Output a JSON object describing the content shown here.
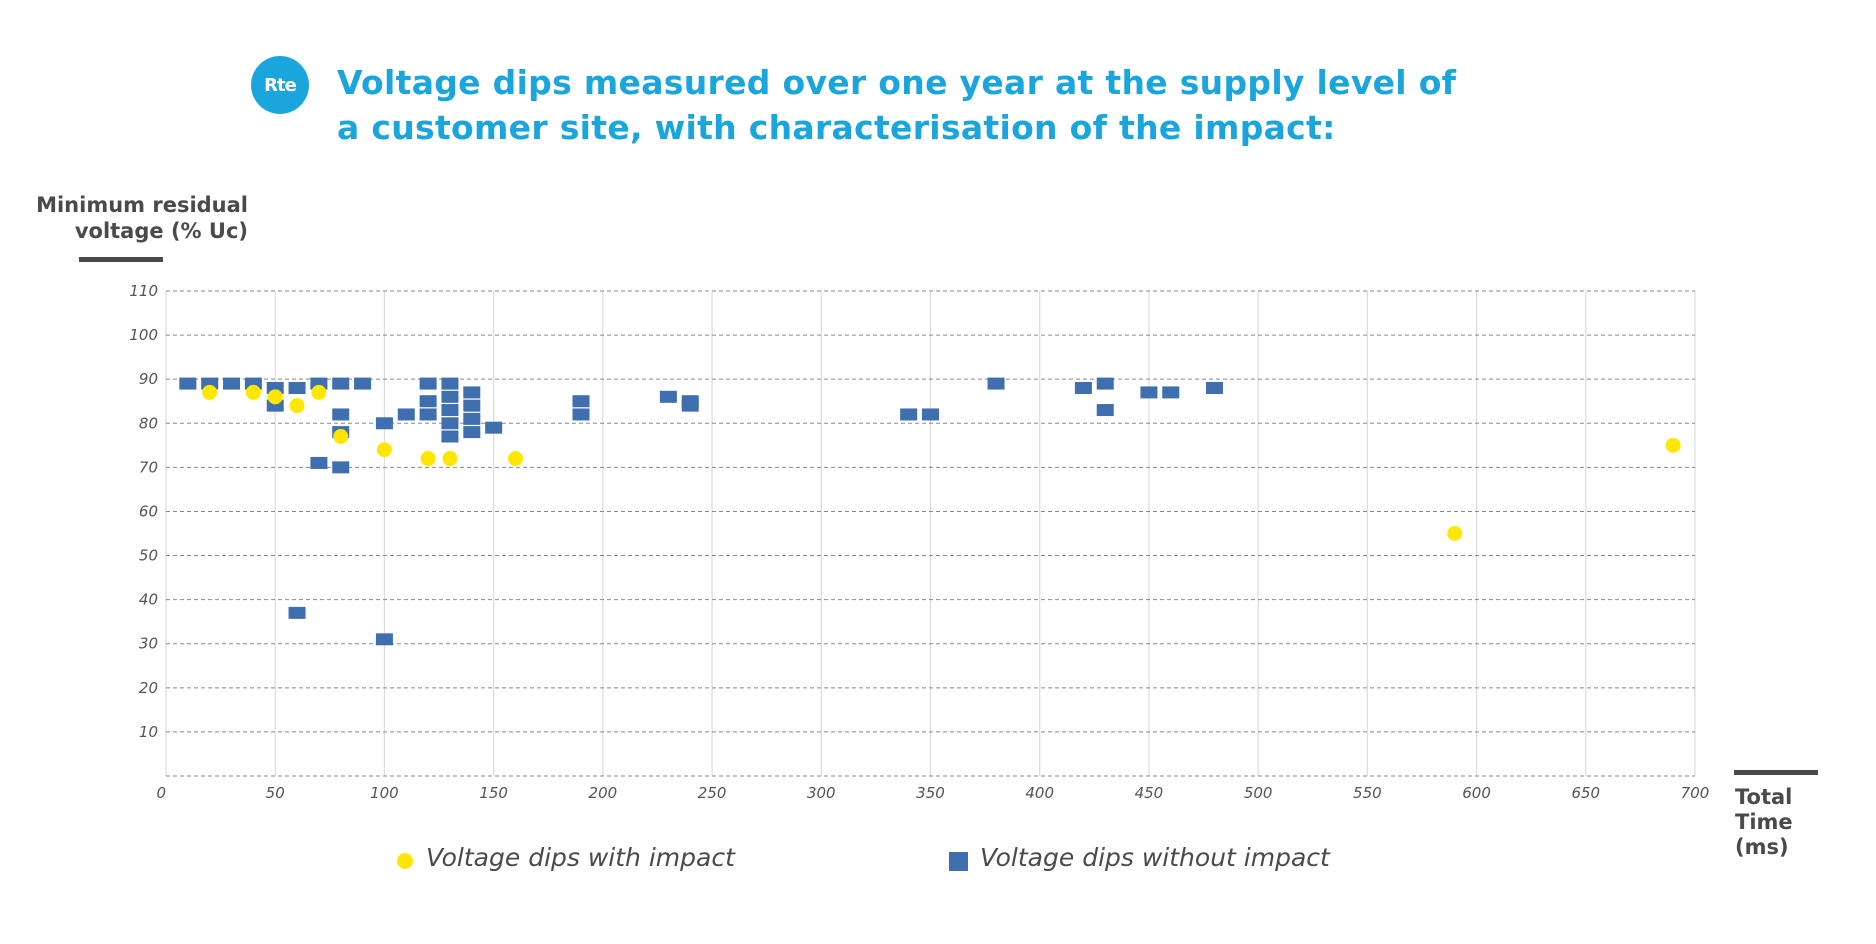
{
  "logo": {
    "text": "Rte"
  },
  "title": {
    "line1": "Voltage dips measured over one year at the supply level of",
    "line2": "a customer site, with characterisation of the impact:"
  },
  "colors": {
    "accent": "#1aa6dc",
    "impact": "#ffe600",
    "no_impact": "#3f6faf",
    "text": "#4a4a4a"
  },
  "chart_data": {
    "type": "scatter",
    "ylabel_line1": "Minimum residual",
    "ylabel_line2": "voltage (% Uc)",
    "xlabel_line1": "Total",
    "xlabel_line2": "Time",
    "xlabel_line3": "(ms)",
    "xlim": [
      0,
      700
    ],
    "ylim": [
      0,
      110
    ],
    "xticks": [
      0,
      50,
      100,
      150,
      200,
      250,
      300,
      350,
      400,
      450,
      500,
      550,
      600,
      650,
      700
    ],
    "yticks": [
      10,
      20,
      30,
      40,
      50,
      60,
      70,
      80,
      90,
      100,
      110
    ],
    "grid": true,
    "legend_position": "bottom",
    "series": [
      {
        "name": "Voltage dips with impact",
        "marker": "circle",
        "color": "#ffe600",
        "points": [
          [
            20,
            87
          ],
          [
            40,
            87
          ],
          [
            50,
            86
          ],
          [
            60,
            84
          ],
          [
            70,
            87
          ],
          [
            80,
            77
          ],
          [
            100,
            74
          ],
          [
            120,
            72
          ],
          [
            130,
            72
          ],
          [
            160,
            72
          ],
          [
            590,
            55
          ],
          [
            690,
            75
          ]
        ]
      },
      {
        "name": "Voltage dips without impact",
        "marker": "rect",
        "color": "#3f6faf",
        "points": [
          [
            10,
            89
          ],
          [
            20,
            89
          ],
          [
            30,
            89
          ],
          [
            40,
            89
          ],
          [
            50,
            88
          ],
          [
            50,
            84
          ],
          [
            60,
            88
          ],
          [
            60,
            37
          ],
          [
            70,
            89
          ],
          [
            70,
            71
          ],
          [
            80,
            89
          ],
          [
            80,
            82
          ],
          [
            80,
            78
          ],
          [
            80,
            70
          ],
          [
            90,
            89
          ],
          [
            100,
            80
          ],
          [
            100,
            31
          ],
          [
            110,
            82
          ],
          [
            120,
            89
          ],
          [
            120,
            85
          ],
          [
            120,
            82
          ],
          [
            130,
            89
          ],
          [
            130,
            86
          ],
          [
            130,
            83
          ],
          [
            130,
            80
          ],
          [
            130,
            77
          ],
          [
            140,
            87
          ],
          [
            140,
            84
          ],
          [
            140,
            81
          ],
          [
            140,
            78
          ],
          [
            150,
            79
          ],
          [
            190,
            85
          ],
          [
            190,
            82
          ],
          [
            230,
            86
          ],
          [
            240,
            85
          ],
          [
            240,
            84
          ],
          [
            340,
            82
          ],
          [
            350,
            82
          ],
          [
            380,
            89
          ],
          [
            420,
            88
          ],
          [
            430,
            89
          ],
          [
            430,
            83
          ],
          [
            450,
            87
          ],
          [
            460,
            87
          ],
          [
            480,
            88
          ]
        ]
      }
    ]
  }
}
